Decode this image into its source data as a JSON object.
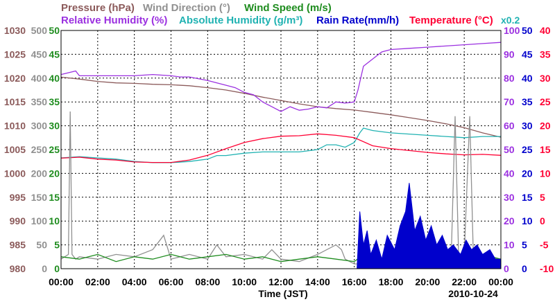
{
  "chart_data": {
    "type": "line",
    "legend": [
      {
        "label": "Pressure (hPa)",
        "color": "#8b5a5a"
      },
      {
        "label": "Wind Direction (°)",
        "color": "#909090"
      },
      {
        "label": "Wind Speed (m/s)",
        "color": "#1e8c1e"
      },
      {
        "label": "Relative Humidity (%)",
        "color": "#9b30e0"
      },
      {
        "label": "Absolute Humidity (g/m³)",
        "color": "#20b2b2"
      },
      {
        "label": "Rain Rate(mm/h)",
        "color": "#0000cc"
      },
      {
        "label": "Temperature (°C)",
        "color": "#ff0033"
      }
    ],
    "scale_note": "x0.2",
    "xlabel": "Time (JST)",
    "date": "2010-10-24",
    "x_ticks": [
      "00:00",
      "02:00",
      "04:00",
      "06:00",
      "08:00",
      "10:00",
      "12:00",
      "14:00",
      "16:00",
      "18:00",
      "20:00",
      "22:00",
      "00:00"
    ],
    "axes": {
      "pressure": {
        "ticks": [
          "1030",
          "1025",
          "1020",
          "1015",
          "1010",
          "1005",
          "1000",
          "995",
          "990",
          "985",
          "980"
        ],
        "range": [
          980,
          1030
        ],
        "color": "#8b5a5a"
      },
      "wind_direction": {
        "ticks": [
          "500",
          "450",
          "400",
          "350",
          "300",
          "250",
          "200",
          "150",
          "100",
          "50",
          "0"
        ],
        "range": [
          0,
          500
        ],
        "color": "#909090"
      },
      "wind_speed": {
        "ticks": [
          "50",
          "45",
          "40",
          "35",
          "30",
          "25",
          "20",
          "15",
          "10",
          "5",
          "0"
        ],
        "range": [
          0,
          50
        ],
        "color": "#1e8c1e"
      },
      "relative_humidity": {
        "ticks": [
          "100",
          "90",
          "80",
          "70",
          "60",
          "50",
          "40",
          "30",
          "20",
          "10",
          "0"
        ],
        "range": [
          0,
          100
        ],
        "color": "#9b30e0"
      },
      "rain_rate": {
        "ticks": [
          "50",
          "45",
          "40",
          "35",
          "30",
          "25",
          "20",
          "15",
          "10",
          "5",
          "0"
        ],
        "range": [
          0,
          50
        ],
        "color": "#0000cc"
      },
      "temperature": {
        "ticks": [
          "40",
          "35",
          "30",
          "25",
          "20",
          "15",
          "10",
          "5",
          "0",
          "-5",
          "-10"
        ],
        "range": [
          -10,
          40
        ],
        "color": "#ff0033"
      }
    },
    "grid": true,
    "series": [
      {
        "name": "Pressure (hPa)",
        "key": "pressure",
        "color": "#8b5a5a",
        "x": [
          0,
          1,
          2,
          3,
          4,
          5,
          6,
          7,
          8,
          9,
          10,
          11,
          12,
          13,
          14,
          15,
          16,
          17,
          18,
          19,
          20,
          21,
          22,
          23,
          24
        ],
        "y": [
          1020.2,
          1019.8,
          1019.3,
          1019.0,
          1018.9,
          1018.7,
          1018.6,
          1018.4,
          1018.0,
          1017.5,
          1016.8,
          1016.0,
          1015.3,
          1014.6,
          1014.0,
          1013.6,
          1013.3,
          1012.8,
          1012.3,
          1011.7,
          1011.1,
          1010.4,
          1009.6,
          1008.5,
          1007.6
        ]
      },
      {
        "name": "Relative Humidity (%)",
        "key": "relative_humidity",
        "color": "#9b30e0",
        "x": [
          0,
          0.8,
          1,
          2,
          3,
          4,
          5,
          6,
          6.5,
          7,
          8,
          9,
          9.5,
          10,
          10.5,
          11,
          11.5,
          12,
          12.5,
          13,
          13.5,
          14,
          14.5,
          15,
          15.5,
          16,
          16.2,
          16.5,
          17,
          17.5,
          18,
          19,
          20,
          21,
          22,
          23,
          24
        ],
        "y": [
          81.5,
          83,
          81,
          81,
          81,
          81,
          81.5,
          81,
          80.5,
          80.5,
          79,
          77,
          76,
          74,
          73,
          70,
          68,
          66,
          68,
          66.5,
          67,
          68,
          67.5,
          70,
          69.5,
          70,
          75,
          85,
          88,
          91,
          92,
          92.5,
          93,
          93.5,
          94,
          94.5,
          95
        ]
      },
      {
        "name": "Absolute Humidity (g/m³)",
        "key": "relative_humidity",
        "color": "#20b2b2",
        "x": [
          0,
          1,
          2,
          3,
          4,
          5,
          6,
          7,
          8,
          8.5,
          9,
          10,
          11,
          12,
          13,
          14,
          14.5,
          15,
          15.5,
          16,
          16.3,
          16.5,
          17,
          18,
          19,
          20,
          21,
          22,
          23,
          24
        ],
        "y": [
          46.5,
          47,
          46.5,
          46,
          45,
          44.5,
          44.5,
          45,
          46,
          47.5,
          47.5,
          48.5,
          49,
          49,
          49,
          50,
          52,
          52,
          51,
          53,
          57,
          59,
          58,
          57,
          56.5,
          56,
          55.5,
          55,
          55.5,
          55.5
        ]
      },
      {
        "name": "Temperature (°C)",
        "key": "temperature",
        "color": "#ff0033",
        "x": [
          0,
          1,
          2,
          3,
          4,
          5,
          6,
          7,
          8,
          9,
          10,
          11,
          12,
          13,
          14,
          15,
          16,
          17,
          18,
          19,
          20,
          21,
          22,
          23,
          24
        ],
        "y": [
          13.2,
          13.4,
          13.0,
          12.8,
          12.4,
          12.3,
          12.3,
          12.8,
          13.8,
          15.2,
          16.5,
          17.3,
          17.8,
          17.9,
          18.3,
          18.0,
          17.5,
          15.8,
          15.2,
          14.8,
          14.4,
          14.1,
          13.9,
          14.0,
          13.8
        ]
      },
      {
        "name": "Wind Direction (°)",
        "key": "wind_direction",
        "color": "#909090",
        "x": [
          0,
          0.4,
          0.5,
          0.6,
          0.8,
          1,
          2,
          3,
          4,
          5,
          5.4,
          5.6,
          6,
          7,
          8,
          8.5,
          9,
          10,
          11,
          11.5,
          12,
          13,
          14,
          15,
          15.3,
          15.5,
          16,
          17,
          18,
          19,
          20,
          21,
          21.3,
          21.5,
          21.7,
          22,
          22.3,
          22.5,
          22.7,
          23,
          24
        ],
        "y": [
          20,
          30,
          330,
          30,
          20,
          25,
          20,
          30,
          25,
          40,
          60,
          70,
          20,
          30,
          20,
          50,
          25,
          30,
          20,
          40,
          20,
          15,
          30,
          50,
          40,
          20,
          10,
          10,
          15,
          10,
          20,
          15,
          40,
          320,
          20,
          30,
          320,
          20,
          40,
          25,
          20
        ]
      },
      {
        "name": "Wind Speed (m/s)",
        "key": "wind_speed",
        "color": "#1e8c1e",
        "x": [
          0,
          1,
          2,
          3,
          4,
          5,
          6,
          7,
          8,
          9,
          10,
          11,
          12,
          13,
          14,
          15,
          16,
          16.5,
          17,
          18,
          19,
          20,
          21,
          22,
          23,
          24
        ],
        "y": [
          2.5,
          2,
          3,
          1.5,
          2.5,
          2,
          3,
          2,
          2.5,
          3,
          2,
          2.5,
          1.5,
          2,
          2.5,
          2,
          1.5,
          3,
          2.5,
          2,
          3,
          2.5,
          2,
          2.5,
          3,
          2
        ]
      },
      {
        "name": "Rain Rate(mm/h)",
        "key": "rain_rate",
        "color": "#0000cc",
        "x": [
          0,
          16.15,
          16.3,
          16.5,
          16.7,
          16.9,
          17.2,
          17.5,
          17.8,
          18.2,
          18.5,
          18.8,
          19.0,
          19.3,
          19.6,
          19.9,
          20.2,
          20.5,
          20.8,
          21.1,
          21.4,
          21.8,
          22.1,
          22.4,
          22.7,
          23.0,
          23.4,
          23.7,
          24
        ],
        "y": [
          0,
          0,
          12,
          5,
          8,
          3,
          6,
          2,
          7,
          4,
          9,
          12,
          18,
          8,
          11,
          6,
          9,
          5,
          7,
          4,
          5,
          3,
          6,
          4,
          5,
          3,
          4,
          2,
          2
        ]
      }
    ]
  }
}
